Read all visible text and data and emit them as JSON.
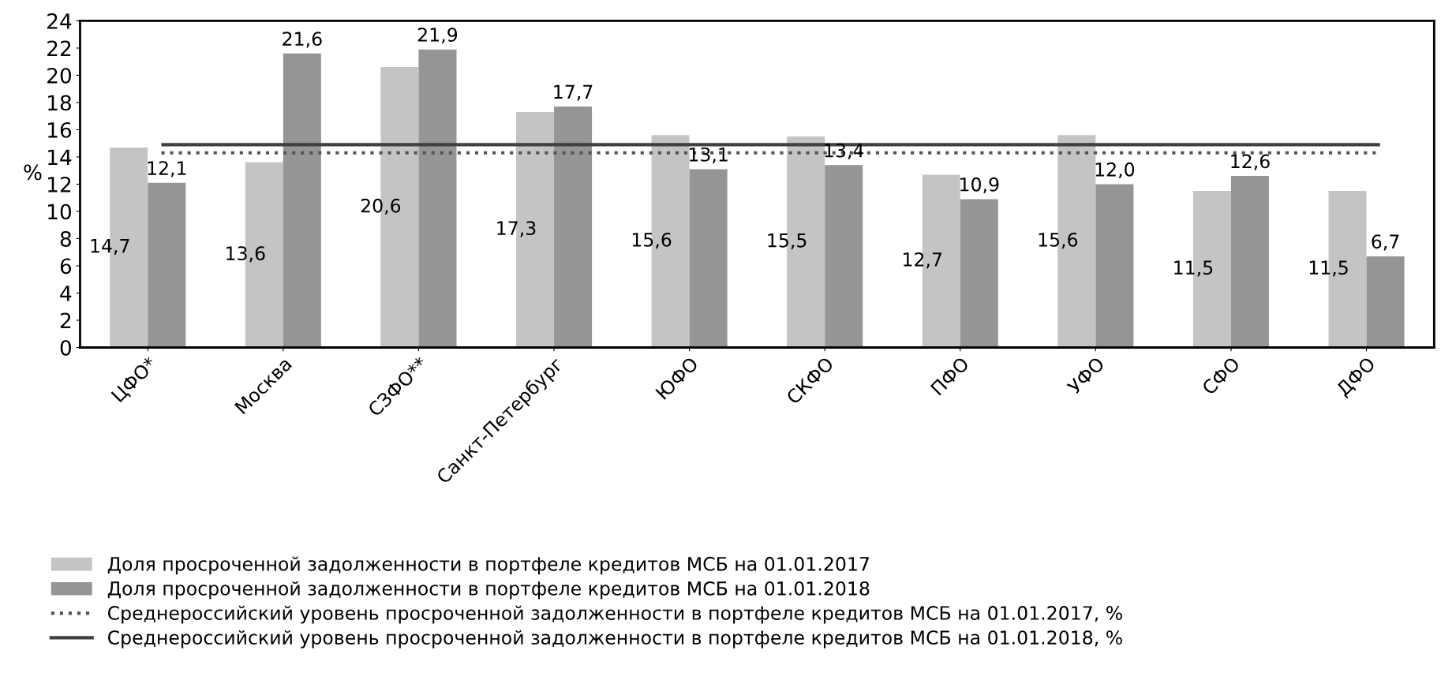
{
  "chart_data": {
    "type": "bar",
    "ylabel": "%",
    "categories": [
      "ЦФО*",
      "Москва",
      "СЗФО**",
      "Санкт-Петербург",
      "ЮФО",
      "СКФО",
      "ПФО",
      "УФО",
      "СФО",
      "ДФО"
    ],
    "series": [
      {
        "name": "Доля просроченной задолженности в портфеле кредитов МСБ на 01.01.2017",
        "color": "#c4c4c4",
        "values": [
          14.7,
          13.6,
          20.6,
          17.3,
          15.6,
          15.5,
          12.7,
          15.6,
          11.5,
          11.5
        ],
        "value_labels": [
          "14,7",
          "13,6",
          "20,6",
          "17,3",
          "15,6",
          "15,5",
          "12,7",
          "15,6",
          "11,5",
          "11,5"
        ]
      },
      {
        "name": "Доля просроченной задолженности в портфеле кредитов МСБ на 01.01.2018",
        "color": "#959595",
        "values": [
          12.1,
          21.6,
          21.9,
          17.7,
          13.1,
          13.4,
          10.9,
          12.0,
          12.6,
          6.7
        ],
        "value_labels": [
          "12,1",
          "21,6",
          "21,9",
          "17,7",
          "13,1",
          "13,4",
          "10,9",
          "12,0",
          "12,6",
          "6,7"
        ]
      }
    ],
    "ref_lines": [
      {
        "axis": "y",
        "value": 14.3,
        "label": "Среднероссийский уровень просроченной задолженности в портфеле кредитов МСБ на 01.01.2017, %",
        "color": "#555555",
        "line_style": "dotted"
      },
      {
        "axis": "y",
        "value": 14.9,
        "label": "Среднероссийский уровень просроченной задолженности в портфеле кредитов МСБ на 01.01.2018, %",
        "color": "#404040",
        "line_style": "solid"
      }
    ],
    "ylim": [
      0,
      24
    ],
    "yticks": [
      0,
      2,
      4,
      6,
      8,
      10,
      12,
      14,
      16,
      18,
      20,
      22,
      24
    ],
    "grid": false,
    "legend": "bottom"
  }
}
